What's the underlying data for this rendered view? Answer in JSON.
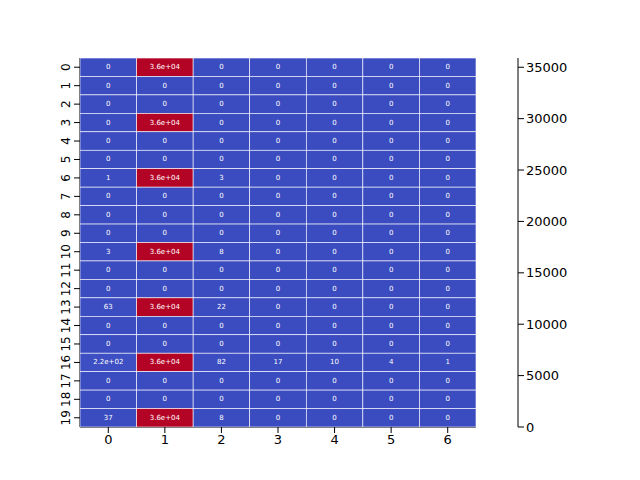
{
  "chart_data": {
    "type": "heatmap",
    "color": "coolwarm",
    "data_labels": true,
    "x": [
      0,
      1,
      2,
      3,
      4,
      5,
      6
    ],
    "y": [
      0,
      1,
      2,
      3,
      4,
      5,
      6,
      7,
      8,
      9,
      10,
      11,
      12,
      13,
      14,
      15,
      16,
      17,
      18,
      19
    ],
    "values": [
      [
        0,
        35900,
        0,
        0,
        0,
        0,
        0
      ],
      [
        0,
        0,
        0,
        0,
        0,
        0,
        0
      ],
      [
        0,
        0,
        0,
        0,
        0,
        0,
        0
      ],
      [
        0,
        35900,
        0,
        0,
        0,
        0,
        0
      ],
      [
        0,
        0,
        0,
        0,
        0,
        0,
        0
      ],
      [
        0,
        0,
        0,
        0,
        0,
        0,
        0
      ],
      [
        1,
        35900,
        3,
        0,
        0,
        0,
        0
      ],
      [
        0,
        0,
        0,
        0,
        0,
        0,
        0
      ],
      [
        0,
        0,
        0,
        0,
        0,
        0,
        0
      ],
      [
        0,
        0,
        0,
        0,
        0,
        0,
        0
      ],
      [
        3,
        35900,
        8,
        0,
        0,
        0,
        0
      ],
      [
        0,
        0,
        0,
        0,
        0,
        0,
        0
      ],
      [
        0,
        0,
        0,
        0,
        0,
        0,
        0
      ],
      [
        63,
        35900,
        22,
        0,
        0,
        0,
        0
      ],
      [
        0,
        0,
        0,
        0,
        0,
        0,
        0
      ],
      [
        0,
        0,
        0,
        0,
        0,
        0,
        0
      ],
      [
        220,
        35900,
        82,
        17,
        10,
        4,
        1
      ],
      [
        0,
        0,
        0,
        0,
        0,
        0,
        0
      ],
      [
        0,
        0,
        0,
        0,
        0,
        0,
        0
      ],
      [
        37,
        35900,
        8,
        0,
        0,
        0,
        0
      ]
    ],
    "value_labels": [
      [
        "0",
        "3.6e+04",
        "0",
        "0",
        "0",
        "0",
        "0"
      ],
      [
        "0",
        "0",
        "0",
        "0",
        "0",
        "0",
        "0"
      ],
      [
        "0",
        "0",
        "0",
        "0",
        "0",
        "0",
        "0"
      ],
      [
        "0",
        "3.6e+04",
        "0",
        "0",
        "0",
        "0",
        "0"
      ],
      [
        "0",
        "0",
        "0",
        "0",
        "0",
        "0",
        "0"
      ],
      [
        "0",
        "0",
        "0",
        "0",
        "0",
        "0",
        "0"
      ],
      [
        "1",
        "3.6e+04",
        "3",
        "0",
        "0",
        "0",
        "0"
      ],
      [
        "0",
        "0",
        "0",
        "0",
        "0",
        "0",
        "0"
      ],
      [
        "0",
        "0",
        "0",
        "0",
        "0",
        "0",
        "0"
      ],
      [
        "0",
        "0",
        "0",
        "0",
        "0",
        "0",
        "0"
      ],
      [
        "3",
        "3.6e+04",
        "8",
        "0",
        "0",
        "0",
        "0"
      ],
      [
        "0",
        "0",
        "0",
        "0",
        "0",
        "0",
        "0"
      ],
      [
        "0",
        "0",
        "0",
        "0",
        "0",
        "0",
        "0"
      ],
      [
        "63",
        "3.6e+04",
        "22",
        "0",
        "0",
        "0",
        "0"
      ],
      [
        "0",
        "0",
        "0",
        "0",
        "0",
        "0",
        "0"
      ],
      [
        "0",
        "0",
        "0",
        "0",
        "0",
        "0",
        "0"
      ],
      [
        "2.2e+02",
        "3.6e+04",
        "82",
        "17",
        "10",
        "4",
        "1"
      ],
      [
        "0",
        "0",
        "0",
        "0",
        "0",
        "0",
        "0"
      ],
      [
        "0",
        "0",
        "0",
        "0",
        "0",
        "0",
        "0"
      ],
      [
        "37",
        "3.6e+04",
        "8",
        "0",
        "0",
        "0",
        "0"
      ]
    ],
    "colorbar": {
      "range": [
        0,
        35900
      ],
      "ticks": [
        0,
        5000,
        10000,
        15000,
        20000,
        25000,
        30000,
        35000
      ]
    }
  }
}
